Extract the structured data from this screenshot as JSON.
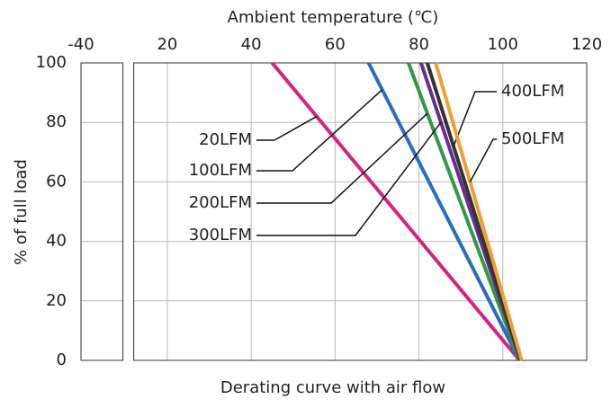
{
  "chart_data": {
    "type": "line",
    "x_label": "Ambient temperature (℃)",
    "y_label": "% of full load",
    "caption": "Derating curve with air flow",
    "xlim": [
      -40,
      120
    ],
    "x_break": [
      -30,
      12
    ],
    "xticks": [
      -40,
      20,
      40,
      60,
      80,
      100,
      120
    ],
    "ylim": [
      0,
      100
    ],
    "yticks": [
      0,
      20,
      40,
      60,
      80,
      100
    ],
    "grid": true,
    "series": [
      {
        "name": "20LFM",
        "color": "#d6237f",
        "x": [
          45,
          104
        ],
        "values": [
          100,
          0
        ]
      },
      {
        "name": "100LFM",
        "color": "#2a6ebb",
        "x": [
          68,
          104
        ],
        "values": [
          100,
          0
        ]
      },
      {
        "name": "200LFM",
        "color": "#2e9a46",
        "x": [
          77.5,
          104
        ],
        "values": [
          100,
          0
        ]
      },
      {
        "name": "300LFM",
        "color": "#6a2c91",
        "x": [
          80.5,
          104.2
        ],
        "values": [
          100,
          0
        ]
      },
      {
        "name": "400LFM",
        "color": "#333333",
        "x": [
          82,
          104.3
        ],
        "values": [
          100,
          0
        ]
      },
      {
        "name": "500LFM",
        "color": "#f0a030",
        "x": [
          84,
          104.5
        ],
        "values": [
          100,
          0
        ]
      }
    ]
  }
}
